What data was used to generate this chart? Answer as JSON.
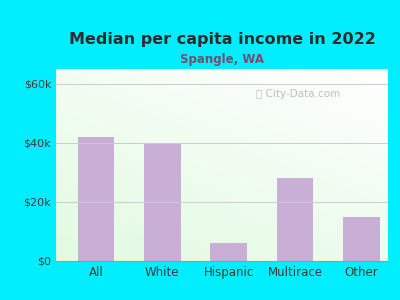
{
  "title": "Median per capita income in 2022",
  "subtitle": "Spangle, WA",
  "categories": [
    "All",
    "White",
    "Hispanic",
    "Multirace",
    "Other"
  ],
  "values": [
    42000,
    40000,
    6000,
    28000,
    15000
  ],
  "bar_color": "#c9aed6",
  "background_outer": "#00eeff",
  "title_color": "#2c2c2c",
  "subtitle_color": "#7a4a6a",
  "tick_color": "#3a3a3a",
  "ylim": [
    0,
    65000
  ],
  "yticks": [
    0,
    20000,
    40000,
    60000
  ],
  "ytick_labels": [
    "$0",
    "$20k",
    "$40k",
    "$60k"
  ],
  "watermark": "City-Data.com",
  "grid_color": "#cccccc"
}
